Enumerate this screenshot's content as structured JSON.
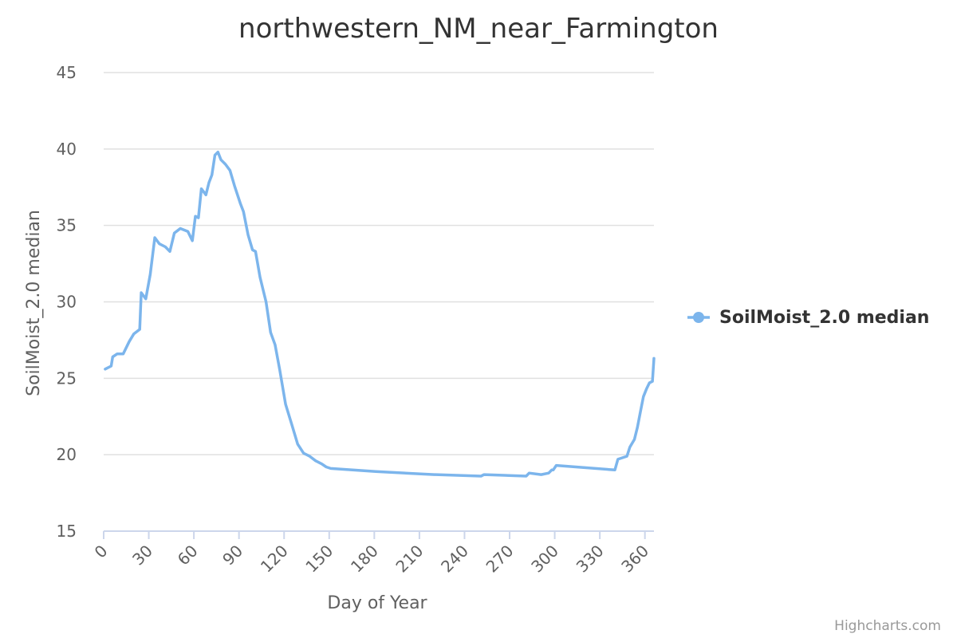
{
  "chart_data": {
    "type": "line",
    "title": "northwestern_NM_near_Farmington",
    "xlabel": "Day of Year",
    "ylabel": "SoilMoist_2.0 median",
    "xlim": [
      0,
      366
    ],
    "ylim": [
      15,
      45
    ],
    "x_ticks": [
      "0",
      "30",
      "60",
      "90",
      "120",
      "150",
      "180",
      "210",
      "240",
      "270",
      "300",
      "330",
      "360"
    ],
    "y_ticks": [
      "15",
      "20",
      "25",
      "30",
      "35",
      "40",
      "45"
    ],
    "grid": true,
    "legend_position": "right",
    "series": [
      {
        "name": "SoilMoist_2.0 median",
        "color": "#7cb5ec",
        "points": [
          [
            1,
            25.6
          ],
          [
            5,
            25.8
          ],
          [
            6,
            26.4
          ],
          [
            9,
            26.6
          ],
          [
            13,
            26.6
          ],
          [
            17,
            27.4
          ],
          [
            20,
            27.9
          ],
          [
            24,
            28.2
          ],
          [
            25,
            30.6
          ],
          [
            28,
            30.2
          ],
          [
            31,
            31.8
          ],
          [
            34,
            34.2
          ],
          [
            37,
            33.8
          ],
          [
            41,
            33.6
          ],
          [
            44,
            33.3
          ],
          [
            47,
            34.5
          ],
          [
            51,
            34.8
          ],
          [
            56,
            34.6
          ],
          [
            59,
            34.0
          ],
          [
            61,
            35.6
          ],
          [
            63,
            35.5
          ],
          [
            65,
            37.4
          ],
          [
            68,
            37.0
          ],
          [
            70,
            37.8
          ],
          [
            72,
            38.3
          ],
          [
            74,
            39.6
          ],
          [
            76,
            39.8
          ],
          [
            78,
            39.3
          ],
          [
            81,
            39.0
          ],
          [
            84,
            38.6
          ],
          [
            87,
            37.6
          ],
          [
            91,
            36.4
          ],
          [
            93,
            35.9
          ],
          [
            96,
            34.4
          ],
          [
            99,
            33.4
          ],
          [
            101,
            33.3
          ],
          [
            104,
            31.6
          ],
          [
            108,
            30.0
          ],
          [
            111,
            28.0
          ],
          [
            114,
            27.2
          ],
          [
            117,
            25.6
          ],
          [
            121,
            23.3
          ],
          [
            125,
            22.0
          ],
          [
            129,
            20.7
          ],
          [
            133,
            20.1
          ],
          [
            137,
            19.9
          ],
          [
            141,
            19.6
          ],
          [
            145,
            19.4
          ],
          [
            148,
            19.2
          ],
          [
            151,
            19.1
          ],
          [
            181,
            18.9
          ],
          [
            220,
            18.7
          ],
          [
            221,
            18.7
          ],
          [
            251,
            18.6
          ],
          [
            253,
            18.7
          ],
          [
            281,
            18.6
          ],
          [
            283,
            18.8
          ],
          [
            291,
            18.7
          ],
          [
            296,
            18.8
          ],
          [
            298,
            19.0
          ],
          [
            299,
            19.0
          ],
          [
            301,
            19.3
          ],
          [
            340,
            19.0
          ],
          [
            342,
            19.7
          ],
          [
            345,
            19.8
          ],
          [
            348,
            19.9
          ],
          [
            350,
            20.5
          ],
          [
            353,
            21.0
          ],
          [
            355,
            21.8
          ],
          [
            357,
            22.8
          ],
          [
            359,
            23.8
          ],
          [
            361,
            24.3
          ],
          [
            363,
            24.7
          ],
          [
            365,
            24.8
          ],
          [
            366,
            26.3
          ]
        ]
      }
    ]
  },
  "credits": "Highcharts.com"
}
